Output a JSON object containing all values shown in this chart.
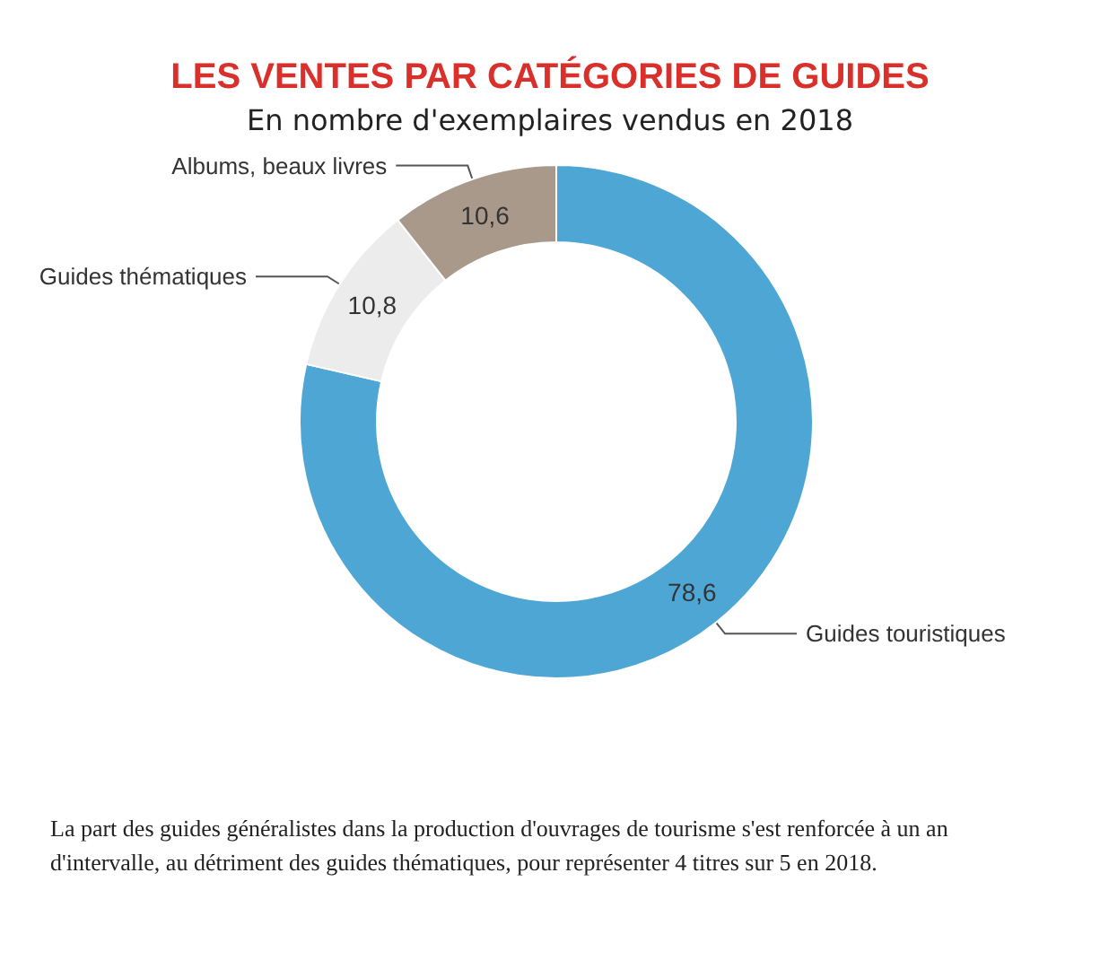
{
  "chart_data": {
    "type": "donut",
    "title": "LES VENTES PAR CATÉGORIES DE GUIDES",
    "subtitle": "En nombre d'exemplaires vendus en 2018",
    "categories": [
      "Guides touristiques",
      "Guides thématiques",
      "Albums, beaux livres"
    ],
    "values": [
      78.6,
      10.8,
      10.6
    ],
    "value_labels": [
      "78,6",
      "10,8",
      "10,6"
    ],
    "colors": [
      "#4da6d3",
      "#ececec",
      "#a8998a"
    ],
    "annotations": [
      "La part des guides généralistes dans la production d'ouvrages de tourisme s'est renforcée à un an d'intervalle, au détriment des guides thématiques, pour représenter 4 titres sur 5 en 2018."
    ]
  }
}
